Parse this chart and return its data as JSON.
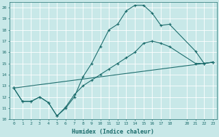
{
  "xlabel": "Humidex (Indice chaleur)",
  "ylabel": "",
  "bg_color": "#c8e8e8",
  "grid_color": "#ffffff",
  "line_color": "#1a6b6b",
  "xlim": [
    -0.5,
    23.5
  ],
  "ylim": [
    10,
    20.5
  ],
  "xticks": [
    0,
    1,
    2,
    3,
    4,
    5,
    6,
    7,
    8,
    9,
    10,
    11,
    12,
    13,
    14,
    15,
    16,
    17,
    18,
    20,
    21,
    22,
    23
  ],
  "yticks": [
    10,
    11,
    12,
    13,
    14,
    15,
    16,
    17,
    18,
    19,
    20
  ],
  "line1_x": [
    0,
    1,
    2,
    3,
    4,
    5,
    6,
    7,
    8,
    9,
    10,
    11,
    12,
    13,
    14,
    15,
    16,
    17,
    18,
    21,
    22,
    23
  ],
  "line1_y": [
    12.8,
    11.6,
    11.6,
    12.0,
    11.5,
    10.3,
    11.0,
    12.0,
    13.8,
    15.0,
    16.5,
    18.0,
    18.5,
    19.7,
    20.2,
    20.2,
    19.5,
    18.4,
    18.5,
    16.1,
    15.0,
    15.1
  ],
  "line2_x": [
    0,
    1,
    2,
    3,
    4,
    5,
    6,
    7,
    8,
    9,
    10,
    11,
    12,
    13,
    14,
    15,
    16,
    17,
    18,
    21,
    22,
    23
  ],
  "line2_y": [
    12.8,
    11.6,
    11.6,
    12.0,
    11.5,
    10.3,
    11.1,
    12.2,
    13.0,
    13.5,
    14.0,
    14.5,
    15.0,
    15.5,
    16.0,
    16.8,
    17.0,
    16.8,
    16.5,
    15.0,
    15.0,
    15.1
  ],
  "line3_x": [
    0,
    23
  ],
  "line3_y": [
    12.8,
    15.1
  ]
}
